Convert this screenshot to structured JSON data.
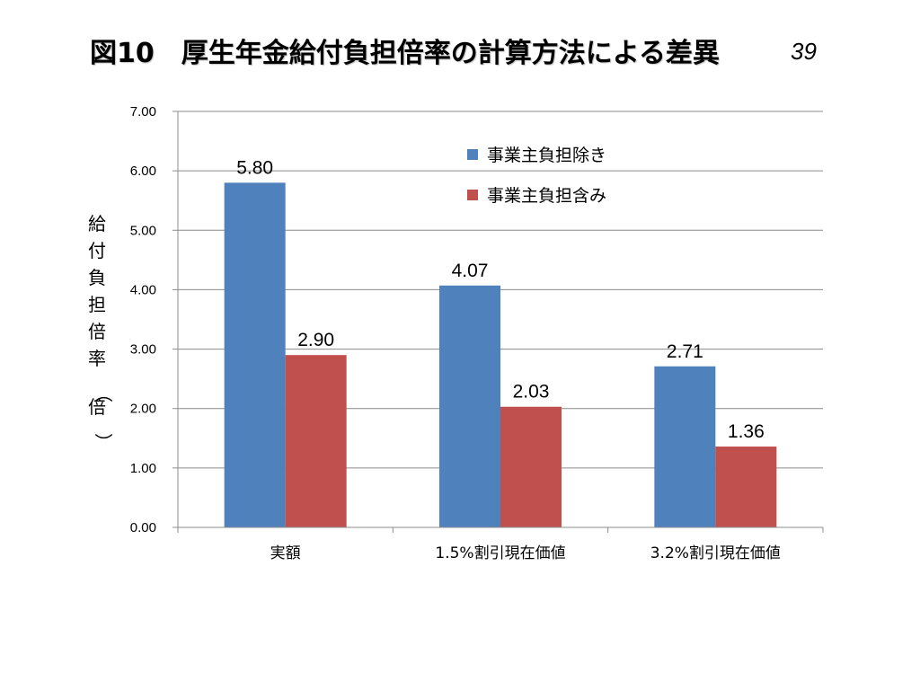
{
  "slide": {
    "title": "図10　厚生年金給付負担倍率の計算方法による差異",
    "number": "39"
  },
  "chart_data": {
    "type": "bar",
    "title": "",
    "xlabel": "",
    "ylabel": "給付負担倍率（倍）",
    "categories": [
      "実額",
      "1.5%割引現在価値",
      "3.2%割引現在価値"
    ],
    "series": [
      {
        "name": "事業主負担除き",
        "values": [
          5.8,
          4.07,
          2.71
        ],
        "color": "#4f81bd"
      },
      {
        "name": "事業主負担含み",
        "values": [
          2.9,
          2.03,
          1.36
        ],
        "color": "#c0504d"
      }
    ],
    "ylim": [
      0,
      7
    ],
    "yticks": [
      "0.00",
      "1.00",
      "2.00",
      "3.00",
      "4.00",
      "5.00",
      "6.00",
      "7.00"
    ],
    "data_labels": [
      [
        "5.80",
        "4.07",
        "2.71"
      ],
      [
        "2.90",
        "2.03",
        "1.36"
      ]
    ],
    "grid": true,
    "legend_position": "top-right"
  }
}
